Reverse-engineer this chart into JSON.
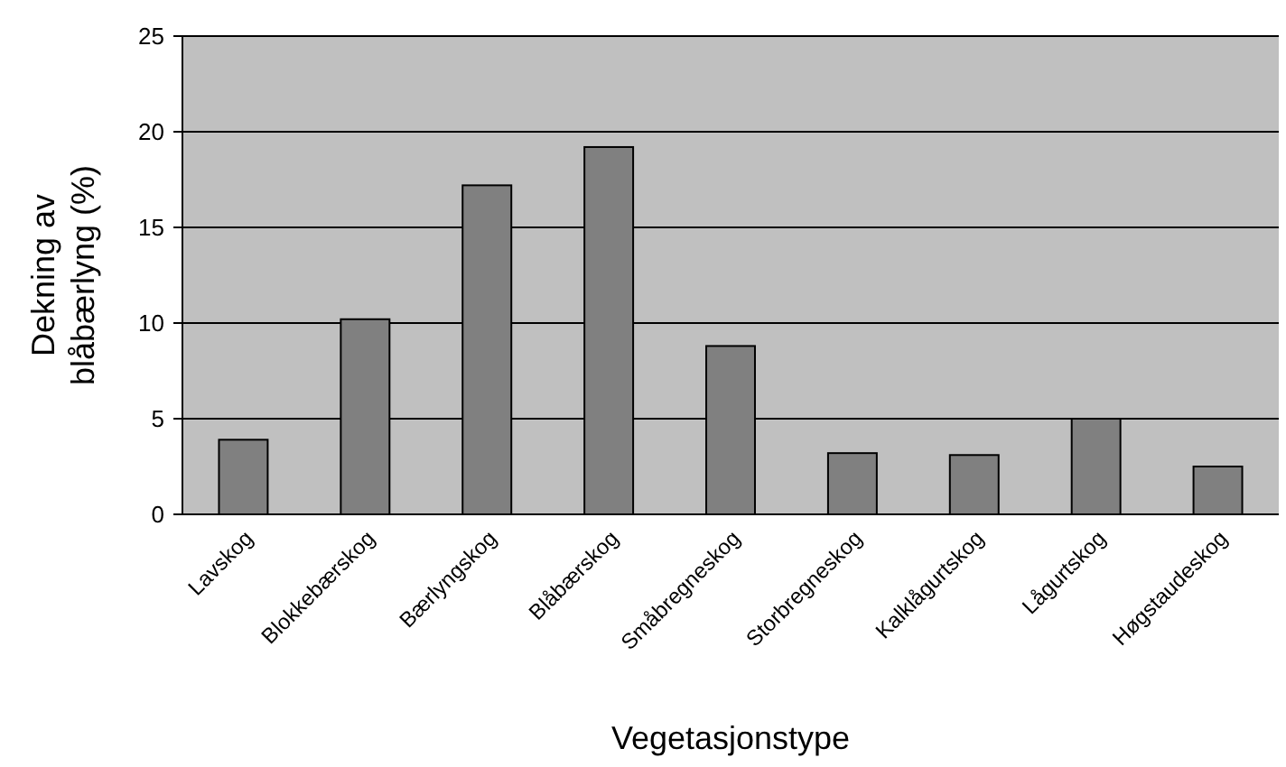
{
  "chart_data": {
    "type": "bar",
    "xlabel": "Vegetasjonstype",
    "ylabel": "Dekning av\nblåbærlyng (%)",
    "categories": [
      "Lavskog",
      "Blokkebærskog",
      "Bærlyngskog",
      "Blåbærskog",
      "Småbregneskog",
      "Storbregneskog",
      "Kalklågurtskog",
      "Lågurtskog",
      "Høgstaudeskog"
    ],
    "values": [
      3.9,
      10.2,
      17.2,
      19.2,
      8.8,
      3.2,
      3.1,
      5.0,
      2.5
    ],
    "color": "#808080",
    "ylim": [
      0,
      25
    ],
    "yticks": [
      0,
      5,
      10,
      15,
      20,
      25
    ],
    "grid": "y"
  }
}
